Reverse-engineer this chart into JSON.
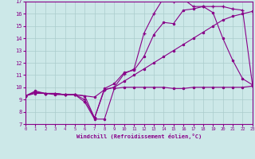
{
  "xlabel": "Windchill (Refroidissement éolien,°C)",
  "xlim": [
    0,
    23
  ],
  "ylim": [
    7,
    17
  ],
  "xticks": [
    0,
    1,
    2,
    3,
    4,
    5,
    6,
    7,
    8,
    9,
    10,
    11,
    12,
    13,
    14,
    15,
    16,
    17,
    18,
    19,
    20,
    21,
    22,
    23
  ],
  "yticks": [
    7,
    8,
    9,
    10,
    11,
    12,
    13,
    14,
    15,
    16,
    17
  ],
  "bg_color": "#cce8e8",
  "grid_color": "#aacccc",
  "line_color": "#880088",
  "line1_x": [
    0,
    1,
    2,
    3,
    4,
    5,
    6,
    7,
    8,
    9,
    10,
    11,
    12,
    13,
    14,
    15,
    16,
    17,
    18,
    19,
    20,
    21,
    22,
    23
  ],
  "line1_y": [
    9.3,
    9.7,
    9.5,
    9.5,
    9.4,
    9.4,
    8.8,
    7.4,
    7.4,
    9.9,
    10.0,
    10.0,
    10.0,
    10.0,
    10.0,
    9.9,
    9.9,
    10.0,
    10.0,
    10.0,
    10.0,
    10.0,
    10.0,
    10.1
  ],
  "line2_x": [
    0,
    1,
    2,
    3,
    4,
    5,
    6,
    7,
    8,
    9,
    10,
    11,
    12,
    13,
    14,
    15,
    16,
    17,
    18,
    19,
    20,
    21,
    22,
    23
  ],
  "line2_y": [
    9.3,
    9.6,
    9.5,
    9.5,
    9.4,
    9.4,
    9.3,
    7.5,
    9.9,
    10.3,
    11.2,
    11.4,
    12.5,
    14.3,
    15.3,
    15.2,
    16.3,
    16.4,
    16.6,
    16.1,
    14.0,
    12.2,
    10.7,
    10.2
  ],
  "line3_x": [
    0,
    1,
    2,
    3,
    4,
    5,
    6,
    7,
    8,
    9,
    10,
    11,
    12,
    13,
    14,
    15,
    16,
    17,
    18,
    19,
    20,
    21,
    22,
    23
  ],
  "line3_y": [
    9.3,
    9.6,
    9.5,
    9.5,
    9.4,
    9.4,
    9.0,
    7.5,
    9.8,
    10.0,
    11.1,
    11.5,
    14.4,
    16.0,
    17.3,
    17.0,
    17.2,
    16.6,
    16.6,
    16.6,
    16.6,
    16.4,
    16.3,
    10.2
  ],
  "line4_x": [
    0,
    1,
    2,
    3,
    4,
    5,
    6,
    7,
    8,
    9,
    10,
    11,
    12,
    13,
    14,
    15,
    16,
    17,
    18,
    19,
    20,
    21,
    22,
    23
  ],
  "line4_y": [
    9.3,
    9.5,
    9.5,
    9.4,
    9.4,
    9.4,
    9.3,
    9.2,
    9.8,
    10.0,
    10.5,
    11.0,
    11.5,
    12.0,
    12.5,
    13.0,
    13.5,
    14.0,
    14.5,
    15.0,
    15.5,
    15.8,
    16.0,
    16.2
  ]
}
